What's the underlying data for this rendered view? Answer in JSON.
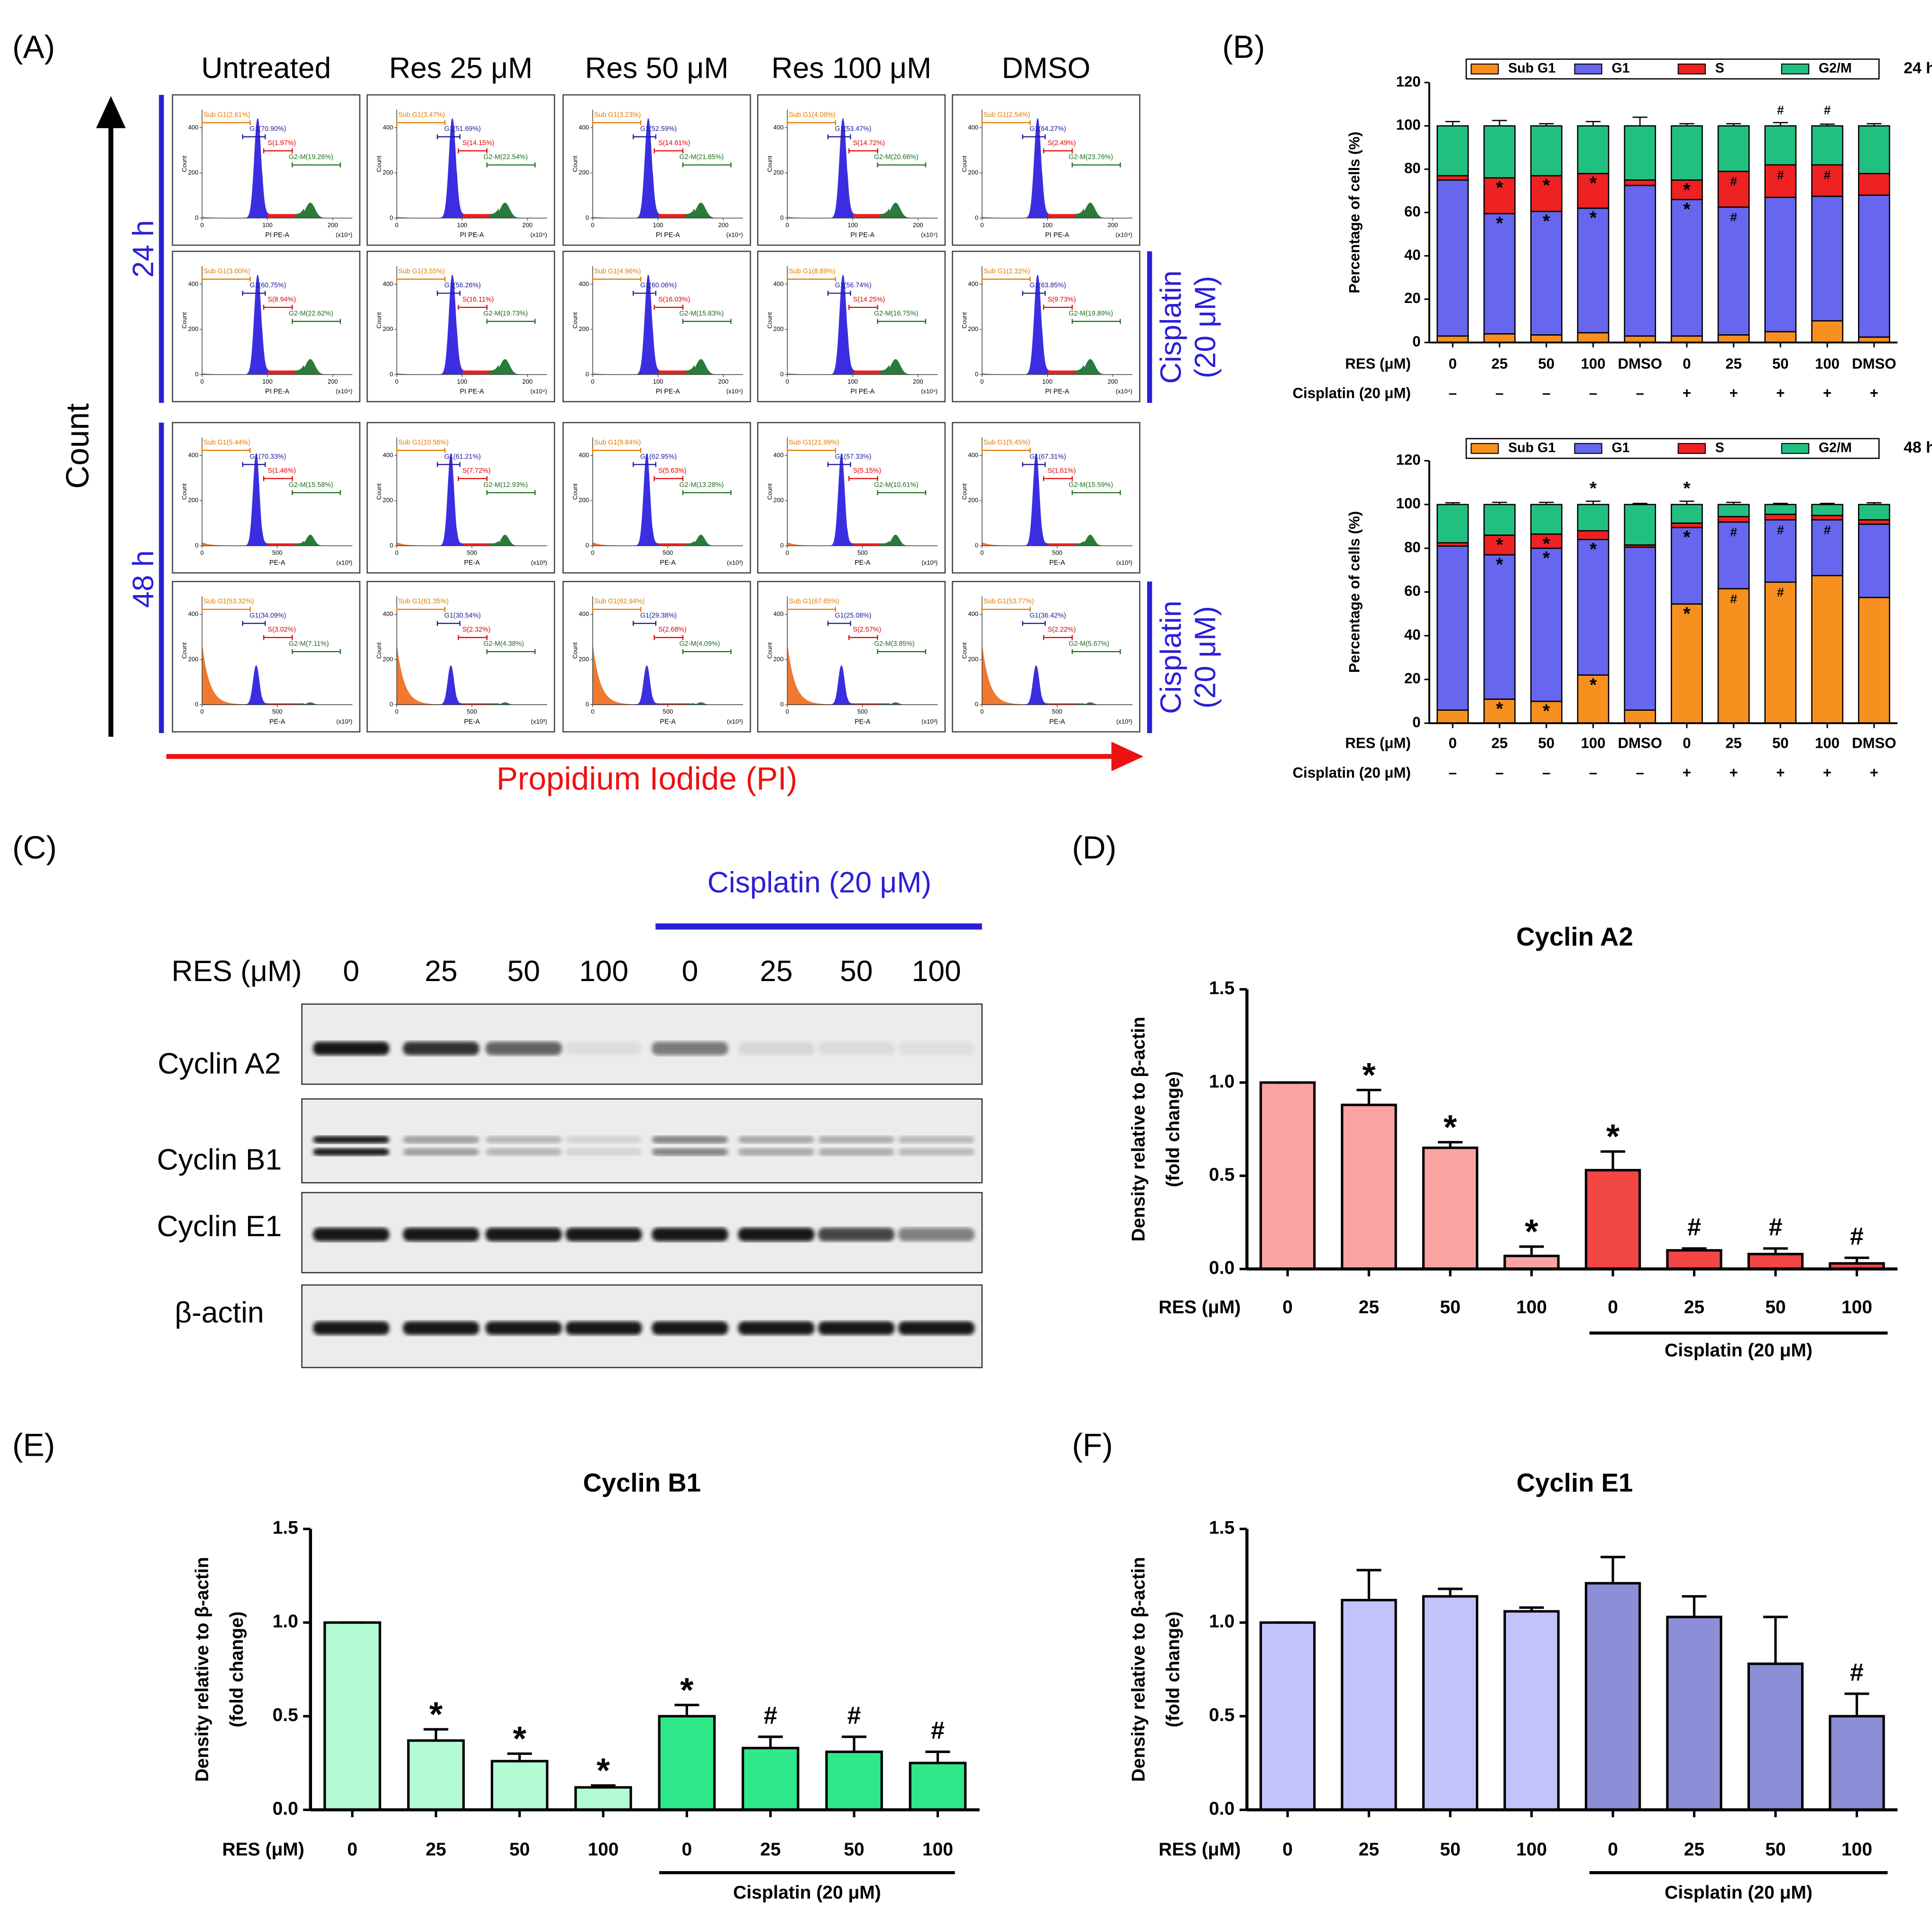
{
  "panel_labels": [
    "(A)",
    "(B)",
    "(C)",
    "(D)",
    "(E)",
    "(F)"
  ],
  "flow": {
    "columns": [
      "Untreated",
      "Res 25 μM",
      "Res 50 μM",
      "Res 100 μM",
      "DMSO"
    ],
    "times": [
      "24 h",
      "48 h"
    ],
    "side_label": [
      "Cisplatin",
      "(20 μM)"
    ],
    "y_axis": "Count",
    "x_axis": "Propidium Iodide (PI)",
    "rows": [
      {
        "xlabel": "PI PE-A",
        "xunit": "(x10⁴)",
        "xlim": [
          0,
          230
        ],
        "xticks": [
          0,
          100,
          200
        ],
        "ylabel": "Count",
        "ylim": [
          0,
          480
        ],
        "yticks": [
          0,
          200,
          400
        ],
        "gates": [
          [
            "Sub G1(2.61%)",
            "G1(70.90%)",
            "S(1.97%)",
            "G2-M(19.26%)"
          ],
          [
            "Sub G1(3.47%)",
            "G1(51.69%)",
            "S(14.15%)",
            "G2-M(22.54%)"
          ],
          [
            "Sub G1(3.23%)",
            "G1(52.59%)",
            "S(14.61%)",
            "G2-M(21.85%)"
          ],
          [
            "Sub G1(4.06%)",
            "G1(53.47%)",
            "S(14.72%)",
            "G2-M(20.66%)"
          ],
          [
            "Sub G1(2.54%)",
            "G1(64.27%)",
            "S(2.49%)",
            "G2-M(23.76%)"
          ]
        ]
      },
      {
        "xlabel": "PI PE-A",
        "xunit": "(x10⁴)",
        "xlim": [
          0,
          230
        ],
        "xticks": [
          0,
          100,
          200
        ],
        "ylabel": "Count",
        "ylim": [
          0,
          480
        ],
        "yticks": [
          0,
          200,
          400
        ],
        "gates": [
          [
            "Sub G1(3.00%)",
            "G1(60.75%)",
            "S(8.94%)",
            "G2-M(22.62%)"
          ],
          [
            "Sub G1(3.55%)",
            "G1(56.26%)",
            "S(16.11%)",
            "G2-M(19.73%)"
          ],
          [
            "Sub G1(4.96%)",
            "G1(60.06%)",
            "S(16.03%)",
            "G2-M(15.83%)"
          ],
          [
            "Sub G1(8.89%)",
            "G1(56.74%)",
            "S(14.25%)",
            "G2-M(16.75%)"
          ],
          [
            "Sub G1(2.32%)",
            "G1(63.85%)",
            "S(9.73%)",
            "G2-M(19.89%)"
          ]
        ]
      },
      {
        "xlabel": "PE-A",
        "xunit": "(x10³)",
        "xlim": [
          0,
          1000
        ],
        "xticks": [
          0,
          500
        ],
        "ylabel": "Count",
        "ylim": [
          0,
          480
        ],
        "yticks": [
          0,
          200,
          400
        ],
        "gates": [
          [
            "Sub G1(5.44%)",
            "G1(70.33%)",
            "S(1.46%)",
            "G2-M(15.58%)"
          ],
          [
            "Sub G1(10.56%)",
            "G1(61.21%)",
            "S(7.72%)",
            "G2-M(12.93%)"
          ],
          [
            "Sub G1(9.84%)",
            "G1(62.95%)",
            "S(5.63%)",
            "G2-M(13.28%)"
          ],
          [
            "Sub G1(21.99%)",
            "G1(57.33%)",
            "S(5.15%)",
            "G2-M(10.61%)"
          ],
          [
            "Sub G1(5.45%)",
            "G1(67.31%)",
            "S(1.61%)",
            "G2-M(15.59%)"
          ]
        ]
      },
      {
        "xlabel": "PE-A",
        "xunit": "(x10³)",
        "xlim": [
          0,
          1000
        ],
        "xticks": [
          0,
          500
        ],
        "ylabel": "Count",
        "ylim": [
          0,
          480
        ],
        "yticks": [
          0,
          200,
          400
        ],
        "gates": [
          [
            "Sub G1(53.32%)",
            "G1(34.09%)",
            "S(3.02%)",
            "G2-M(7.11%)"
          ],
          [
            "Sub G1(61.35%)",
            "G1(30.54%)",
            "S(2.32%)",
            "G2-M(4.38%)"
          ],
          [
            "Sub G1(62.94%)",
            "G1(29.38%)",
            "S(2.68%)",
            "G2-M(4.09%)"
          ],
          [
            "Sub G1(67.65%)",
            "G1(25.08%)",
            "S(2.57%)",
            "G2-M(3.85%)"
          ],
          [
            "Sub G1(53.77%)",
            "G1(36.42%)",
            "S(2.22%)",
            "G2-M(5.67%)"
          ]
        ]
      }
    ]
  },
  "blot": {
    "group_label": "Cisplatin (20 μM)",
    "xlabel": "RES (μM)",
    "lanes": [
      "0",
      "25",
      "50",
      "100",
      "0",
      "25",
      "50",
      "100"
    ],
    "proteins": [
      "Cyclin A2",
      "Cyclin B1",
      "Cyclin E1",
      "β-actin"
    ]
  },
  "chart_data": [
    {
      "type": "stacked_bar",
      "period": "24 h",
      "ylabel": "Percentage of cells (%)",
      "xlabel": "RES (μM)",
      "cisplatin_label": "Cisplatin (20 μM)",
      "categories": [
        "0",
        "25",
        "50",
        "100",
        "DMSO",
        "0",
        "25",
        "50",
        "100",
        "DMSO"
      ],
      "cisplatin": [
        "–",
        "–",
        "–",
        "–",
        "–",
        "+",
        "+",
        "+",
        "+",
        "+"
      ],
      "ylim": [
        0,
        120
      ],
      "yticks": [
        0,
        20,
        40,
        60,
        80,
        100,
        120
      ],
      "series": [
        {
          "name": "Sub G1",
          "color": "#f7901e",
          "values": [
            3,
            4,
            3.5,
            4.5,
            3,
            3,
            3.5,
            5,
            10,
            2.5
          ],
          "errors": [
            0.3,
            0.4,
            0.3,
            0.5,
            0.3,
            0.3,
            0.4,
            0.6,
            1.5,
            0.3
          ],
          "markers": [
            null,
            null,
            null,
            null,
            null,
            null,
            null,
            null,
            null,
            null
          ]
        },
        {
          "name": "G1",
          "color": "#6666ee",
          "values": [
            72,
            55.5,
            57,
            57.5,
            69.5,
            63,
            59,
            62,
            57.5,
            65.5
          ],
          "errors": [
            1,
            1.5,
            1,
            2,
            1,
            1,
            1,
            1.5,
            2,
            1
          ],
          "markers": [
            null,
            "*",
            "*",
            "*",
            null,
            "*",
            "#",
            null,
            null,
            null
          ]
        },
        {
          "name": "S",
          "color": "#ee2222",
          "values": [
            2,
            16.5,
            16.5,
            16,
            2.5,
            9,
            16.5,
            15,
            14.5,
            10
          ],
          "errors": [
            0.5,
            1.5,
            1,
            1,
            0.5,
            1.5,
            1,
            2,
            1.5,
            1
          ],
          "markers": [
            null,
            "*",
            "*",
            "*",
            null,
            "*",
            "#",
            "#",
            "#",
            null
          ]
        },
        {
          "name": "G2/M",
          "color": "#22c080",
          "values": [
            23,
            24,
            23,
            22,
            25,
            25,
            21,
            18,
            18,
            22
          ],
          "errors": [
            2,
            2.5,
            1,
            2,
            4,
            1,
            1,
            1.5,
            0.8,
            1
          ],
          "markers": [
            null,
            null,
            null,
            null,
            null,
            null,
            null,
            "#",
            "#",
            null
          ]
        }
      ]
    },
    {
      "type": "stacked_bar",
      "period": "48 h",
      "ylabel": "Percentage of cells (%)",
      "xlabel": "RES (μM)",
      "cisplatin_label": "Cisplatin (20 μM)",
      "categories": [
        "0",
        "25",
        "50",
        "100",
        "DMSO",
        "0",
        "25",
        "50",
        "100",
        "DMSO"
      ],
      "cisplatin": [
        "–",
        "–",
        "–",
        "–",
        "–",
        "+",
        "+",
        "+",
        "+",
        "+"
      ],
      "ylim": [
        0,
        120
      ],
      "yticks": [
        0,
        20,
        40,
        60,
        80,
        100,
        120
      ],
      "series": [
        {
          "name": "Sub G1",
          "color": "#f7901e",
          "values": [
            6,
            11,
            10,
            22,
            6,
            54.5,
            61.5,
            64.5,
            67.5,
            57.5
          ],
          "errors": [
            0.5,
            0.8,
            0.8,
            1,
            0.5,
            1,
            1,
            1,
            1,
            4
          ],
          "markers": [
            null,
            "*",
            "*",
            "*",
            null,
            "*",
            "#",
            "#",
            null,
            null
          ]
        },
        {
          "name": "G1",
          "color": "#6666ee",
          "values": [
            75,
            66,
            70,
            62,
            74.5,
            35,
            30.5,
            28.5,
            25.5,
            33.5
          ],
          "errors": [
            1,
            1,
            1,
            1,
            0.5,
            1,
            1,
            1,
            1,
            2
          ],
          "markers": [
            null,
            "*",
            "*",
            "*",
            null,
            "*",
            "#",
            "#",
            "#",
            null
          ]
        },
        {
          "name": "S",
          "color": "#ee2222",
          "values": [
            1.5,
            9,
            6.5,
            4,
            1,
            2,
            2.5,
            2.5,
            2,
            2
          ],
          "errors": [
            0.3,
            1,
            1,
            0.8,
            0.3,
            0.5,
            0.5,
            0.5,
            0.5,
            0.5
          ],
          "markers": [
            null,
            "*",
            "*",
            null,
            null,
            null,
            null,
            null,
            null,
            null
          ]
        },
        {
          "name": "G2/M",
          "color": "#22c080",
          "values": [
            17.5,
            14,
            13.5,
            12,
            18.5,
            8.5,
            5.5,
            4.5,
            5,
            7
          ],
          "errors": [
            0.8,
            1,
            1,
            1.5,
            0.5,
            1.5,
            1,
            0.5,
            0.5,
            0.8
          ],
          "markers": [
            null,
            null,
            null,
            "*",
            null,
            "*",
            null,
            null,
            null,
            null
          ]
        }
      ]
    },
    {
      "type": "bar",
      "title": "Cyclin A2",
      "ylabel": [
        "Density relative to β-actin",
        "(fold change)"
      ],
      "xlabel": "RES (μM)",
      "group_label": "Cisplatin (20 μM)",
      "categories": [
        "0",
        "25",
        "50",
        "100",
        "0",
        "25",
        "50",
        "100"
      ],
      "values": [
        1.0,
        0.88,
        0.65,
        0.07,
        0.53,
        0.1,
        0.08,
        0.03
      ],
      "errors": [
        0,
        0.08,
        0.03,
        0.05,
        0.1,
        0.01,
        0.03,
        0.03
      ],
      "markers": [
        null,
        "*",
        "*",
        "*",
        "*",
        "#",
        "#",
        "#"
      ],
      "colors": [
        "#f9a3a3",
        "#f9a3a3",
        "#f9a3a3",
        "#f9a3a3",
        "#f24646",
        "#f24646",
        "#f24646",
        "#f24646"
      ],
      "ylim": [
        0,
        1.5
      ],
      "yticks": [
        {
          "value": 0,
          "label": "0.0"
        },
        0.5,
        {
          "value": 1,
          "label": "1.0"
        },
        1.5
      ]
    },
    {
      "type": "bar",
      "title": "Cyclin B1",
      "ylabel": [
        "Density relative to β-actin",
        "(fold change)"
      ],
      "xlabel": "RES (μM)",
      "group_label": "Cisplatin (20 μM)",
      "categories": [
        "0",
        "25",
        "50",
        "100",
        "0",
        "25",
        "50",
        "100"
      ],
      "values": [
        1.0,
        0.37,
        0.26,
        0.12,
        0.5,
        0.33,
        0.31,
        0.25
      ],
      "errors": [
        0,
        0.06,
        0.04,
        0.01,
        0.06,
        0.06,
        0.08,
        0.06
      ],
      "markers": [
        null,
        "*",
        "*",
        "*",
        "*",
        "#",
        "#",
        "#"
      ],
      "colors": [
        "#b3fbd3",
        "#b3fbd3",
        "#b3fbd3",
        "#b3fbd3",
        "#2ee88a",
        "#2ee88a",
        "#2ee88a",
        "#2ee88a"
      ],
      "ylim": [
        0,
        1.5
      ],
      "yticks": [
        {
          "value": 0,
          "label": "0.0"
        },
        0.5,
        {
          "value": 1,
          "label": "1.0"
        },
        1.5
      ]
    },
    {
      "type": "bar",
      "title": "Cyclin E1",
      "ylabel": [
        "Density relative to β-actin",
        "(fold change)"
      ],
      "xlabel": "RES (μM)",
      "group_label": "Cisplatin (20 μM)",
      "categories": [
        "0",
        "25",
        "50",
        "100",
        "0",
        "25",
        "50",
        "100"
      ],
      "values": [
        1.0,
        1.12,
        1.14,
        1.06,
        1.21,
        1.03,
        0.78,
        0.5
      ],
      "errors": [
        0,
        0.16,
        0.04,
        0.02,
        0.14,
        0.11,
        0.25,
        0.12
      ],
      "markers": [
        null,
        null,
        null,
        null,
        null,
        null,
        null,
        "#"
      ],
      "colors": [
        "#c3c3fb",
        "#c3c3fb",
        "#c3c3fb",
        "#c3c3fb",
        "#8c8ed8",
        "#8c8ed8",
        "#8c8ed8",
        "#8c8ed8"
      ],
      "ylim": [
        0,
        1.5
      ],
      "yticks": [
        {
          "value": 0,
          "label": "0.0"
        },
        0.5,
        {
          "value": 1,
          "label": "1.0"
        },
        1.5
      ]
    }
  ]
}
